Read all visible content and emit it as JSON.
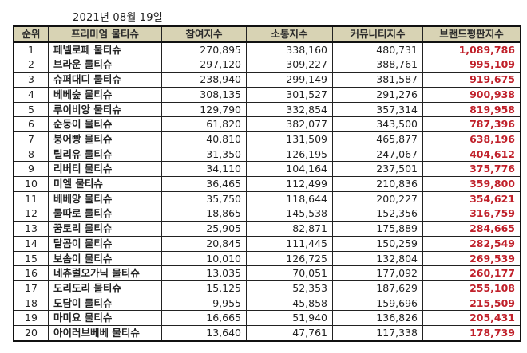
{
  "date": "2021년 08월 19일",
  "headers": [
    "순위",
    "프리미엄 물티슈",
    "참여지수",
    "소통지수",
    "커뮤니티지수",
    "브랜드평판지수"
  ],
  "accent_color": "#c0202a",
  "header_bg": "#d8d3b4",
  "rows": [
    {
      "rank": "1",
      "name": "페넬로페 물티슈",
      "participation": "270,895",
      "communication": "338,160",
      "community": "480,731",
      "brand": "1,089,786"
    },
    {
      "rank": "2",
      "name": "브라운 물티슈",
      "participation": "297,120",
      "communication": "309,227",
      "community": "388,761",
      "brand": "995,109"
    },
    {
      "rank": "3",
      "name": "슈퍼대디 물티슈",
      "participation": "238,940",
      "communication": "299,149",
      "community": "381,587",
      "brand": "919,675"
    },
    {
      "rank": "4",
      "name": "베베숲 물티슈",
      "participation": "308,135",
      "communication": "301,527",
      "community": "291,276",
      "brand": "900,938"
    },
    {
      "rank": "5",
      "name": "루이비앙 물티슈",
      "participation": "129,790",
      "communication": "332,854",
      "community": "357,314",
      "brand": "819,958"
    },
    {
      "rank": "6",
      "name": "순둥이 물티슈",
      "participation": "61,820",
      "communication": "382,077",
      "community": "343,500",
      "brand": "787,396"
    },
    {
      "rank": "7",
      "name": "붕어빵 물티슈",
      "participation": "40,810",
      "communication": "131,509",
      "community": "465,877",
      "brand": "638,196"
    },
    {
      "rank": "8",
      "name": "릴리유 물티슈",
      "participation": "31,350",
      "communication": "126,195",
      "community": "247,067",
      "brand": "404,612"
    },
    {
      "rank": "9",
      "name": "리버티 물티슈",
      "participation": "34,110",
      "communication": "104,164",
      "community": "237,501",
      "brand": "375,776"
    },
    {
      "rank": "10",
      "name": "미엘 물티슈",
      "participation": "36,465",
      "communication": "112,499",
      "community": "210,836",
      "brand": "359,800"
    },
    {
      "rank": "11",
      "name": "베베앙 물티슈",
      "participation": "35,750",
      "communication": "118,644",
      "community": "200,227",
      "brand": "354,621"
    },
    {
      "rank": "12",
      "name": "물따로 물티슈",
      "participation": "18,865",
      "communication": "145,538",
      "community": "152,356",
      "brand": "316,759"
    },
    {
      "rank": "13",
      "name": "꿈토리 물티슈",
      "participation": "25,905",
      "communication": "82,871",
      "community": "175,889",
      "brand": "284,665"
    },
    {
      "rank": "14",
      "name": "닽곰이 물티슈",
      "participation": "20,845",
      "communication": "111,445",
      "community": "150,259",
      "brand": "282,549"
    },
    {
      "rank": "15",
      "name": "보솜이 물티슈",
      "participation": "10,010",
      "communication": "126,725",
      "community": "132,804",
      "brand": "269,539"
    },
    {
      "rank": "16",
      "name": "네츄럴오가닉 물티슈",
      "participation": "13,035",
      "communication": "70,051",
      "community": "177,092",
      "brand": "260,177"
    },
    {
      "rank": "17",
      "name": "도리도리 물티슈",
      "participation": "15,125",
      "communication": "52,353",
      "community": "187,629",
      "brand": "255,108"
    },
    {
      "rank": "18",
      "name": "도담이 물티슈",
      "participation": "9,955",
      "communication": "45,858",
      "community": "159,696",
      "brand": "215,509"
    },
    {
      "rank": "19",
      "name": "마미요 물티슈",
      "participation": "16,665",
      "communication": "51,940",
      "community": "136,826",
      "brand": "205,431"
    },
    {
      "rank": "20",
      "name": "아이러브베베 물티슈",
      "participation": "13,640",
      "communication": "47,761",
      "community": "117,338",
      "brand": "178,739"
    }
  ]
}
